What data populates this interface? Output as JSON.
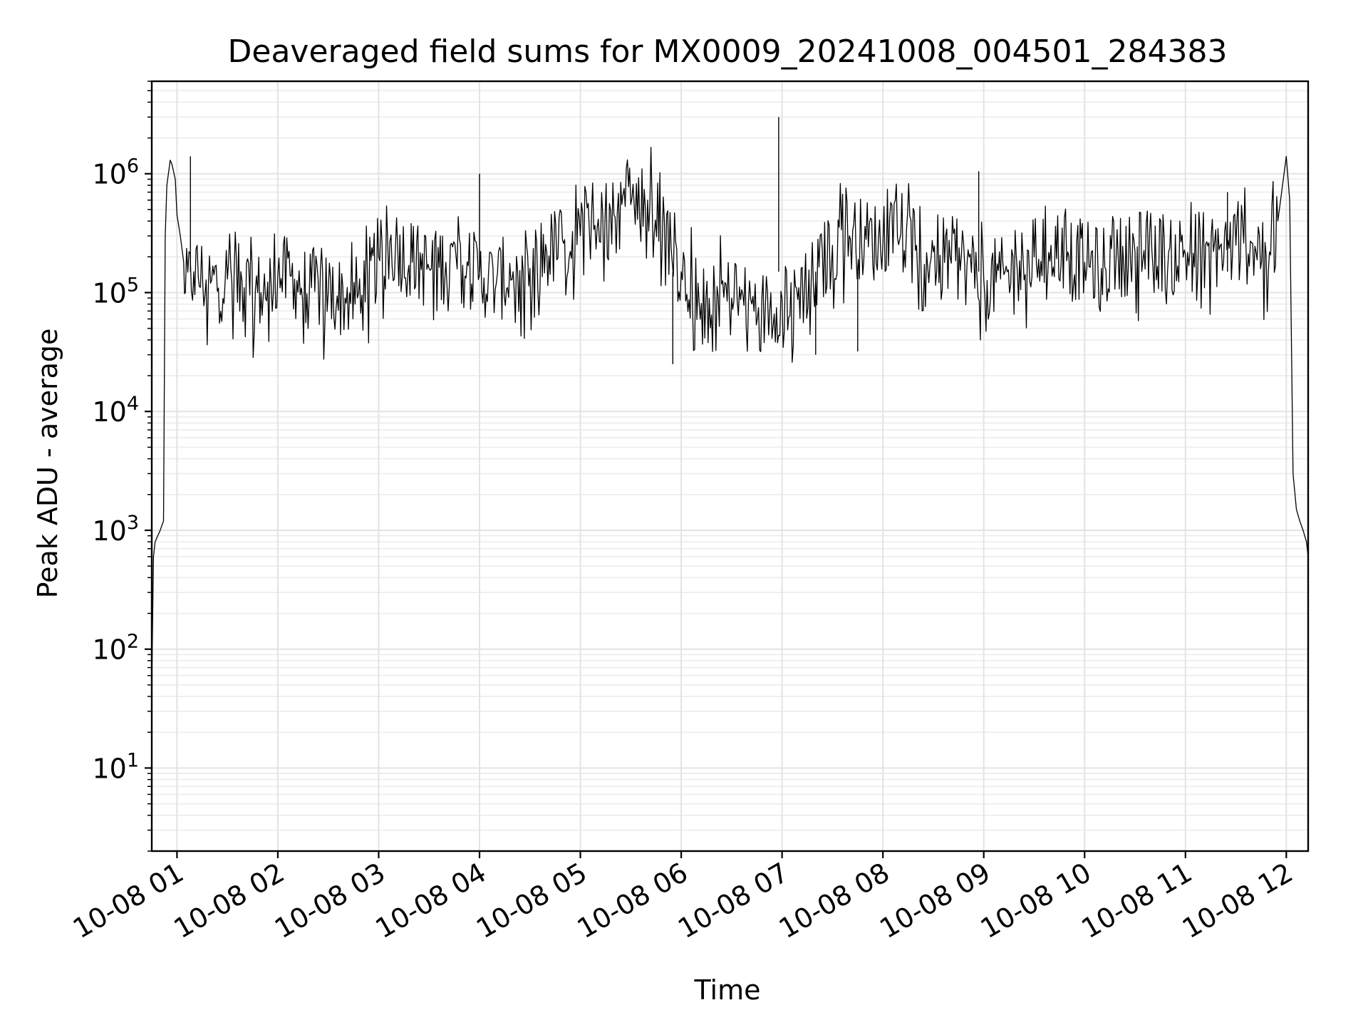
{
  "chart_data": {
    "type": "line",
    "title": "Deaveraged field sums for MX0009_20241008_004501_284383",
    "xlabel": "Time",
    "ylabel": "Peak ADU - average",
    "yscale": "log",
    "ylim": [
      2,
      6000000
    ],
    "xlim": [
      "2024-10-08 00:45",
      "2024-10-08 12:13"
    ],
    "grid": true,
    "line_color": "#000000",
    "x_ticks": [
      {
        "value": "2024-10-08 01:00",
        "label": "10-08 01"
      },
      {
        "value": "2024-10-08 02:00",
        "label": "10-08 02"
      },
      {
        "value": "2024-10-08 03:00",
        "label": "10-08 03"
      },
      {
        "value": "2024-10-08 04:00",
        "label": "10-08 04"
      },
      {
        "value": "2024-10-08 05:00",
        "label": "10-08 05"
      },
      {
        "value": "2024-10-08 06:00",
        "label": "10-08 06"
      },
      {
        "value": "2024-10-08 07:00",
        "label": "10-08 07"
      },
      {
        "value": "2024-10-08 08:00",
        "label": "10-08 08"
      },
      {
        "value": "2024-10-08 09:00",
        "label": "10-08 09"
      },
      {
        "value": "2024-10-08 10:00",
        "label": "10-08 10"
      },
      {
        "value": "2024-10-08 11:00",
        "label": "10-08 11"
      },
      {
        "value": "2024-10-08 12:00",
        "label": "10-08 12"
      }
    ],
    "y_ticks": [
      {
        "value": 10,
        "base": "10",
        "exp": "1"
      },
      {
        "value": 100,
        "base": "10",
        "exp": "2"
      },
      {
        "value": 1000,
        "base": "10",
        "exp": "3"
      },
      {
        "value": 10000,
        "base": "10",
        "exp": "4"
      },
      {
        "value": 100000,
        "base": "10",
        "exp": "5"
      },
      {
        "value": 1000000,
        "base": "10",
        "exp": "6"
      }
    ],
    "series": [
      {
        "x": [
          "2024-10-08 00:45",
          "2024-10-08 00:46",
          "2024-10-08 00:47",
          "2024-10-08 00:50",
          "2024-10-08 00:52",
          "2024-10-08 00:53",
          "2024-10-08 00:54",
          "2024-10-08 00:56",
          "2024-10-08 00:57",
          "2024-10-08 00:59",
          "2024-10-08 01:00",
          "2024-10-08 01:02",
          "2024-10-08 01:04",
          "2024-10-08 01:05",
          "2024-10-08 01:10",
          "2024-10-08 01:20",
          "2024-10-08 01:30",
          "2024-10-08 01:40",
          "2024-10-08 01:50",
          "2024-10-08 02:00",
          "2024-10-08 02:10",
          "2024-10-08 02:20",
          "2024-10-08 02:30",
          "2024-10-08 02:40",
          "2024-10-08 02:50",
          "2024-10-08 03:00",
          "2024-10-08 03:10",
          "2024-10-08 03:20",
          "2024-10-08 03:30",
          "2024-10-08 03:40",
          "2024-10-08 03:50",
          "2024-10-08 04:00",
          "2024-10-08 04:10",
          "2024-10-08 04:20",
          "2024-10-08 04:30",
          "2024-10-08 04:40",
          "2024-10-08 04:50",
          "2024-10-08 05:00",
          "2024-10-08 05:10",
          "2024-10-08 05:20",
          "2024-10-08 05:30",
          "2024-10-08 05:40",
          "2024-10-08 05:50",
          "2024-10-08 06:00",
          "2024-10-08 06:10",
          "2024-10-08 06:20",
          "2024-10-08 06:30",
          "2024-10-08 06:40",
          "2024-10-08 06:50",
          "2024-10-08 07:00",
          "2024-10-08 07:10",
          "2024-10-08 07:20",
          "2024-10-08 07:30",
          "2024-10-08 07:40",
          "2024-10-08 07:50",
          "2024-10-08 08:00",
          "2024-10-08 08:10",
          "2024-10-08 08:20",
          "2024-10-08 08:30",
          "2024-10-08 08:40",
          "2024-10-08 08:50",
          "2024-10-08 09:00",
          "2024-10-08 09:10",
          "2024-10-08 09:20",
          "2024-10-08 09:30",
          "2024-10-08 09:40",
          "2024-10-08 09:50",
          "2024-10-08 10:00",
          "2024-10-08 10:10",
          "2024-10-08 10:20",
          "2024-10-08 10:30",
          "2024-10-08 10:40",
          "2024-10-08 10:50",
          "2024-10-08 11:00",
          "2024-10-08 11:10",
          "2024-10-08 11:20",
          "2024-10-08 11:30",
          "2024-10-08 11:40",
          "2024-10-08 11:50",
          "2024-10-08 11:55",
          "2024-10-08 12:00",
          "2024-10-08 12:02",
          "2024-10-08 12:04",
          "2024-10-08 12:06",
          "2024-10-08 12:08",
          "2024-10-08 12:10",
          "2024-10-08 12:12",
          "2024-10-08 12:13"
        ],
        "y": [
          50,
          600,
          800,
          1000,
          1200,
          300000,
          800000,
          1300000,
          1200000,
          900000,
          450000,
          300000,
          180000,
          100000,
          150000,
          120000,
          130000,
          110000,
          100000,
          140000,
          130000,
          110000,
          100000,
          90000,
          95000,
          200000,
          250000,
          180000,
          160000,
          180000,
          170000,
          140000,
          120000,
          150000,
          160000,
          220000,
          260000,
          300000,
          350000,
          450000,
          550000,
          600000,
          400000,
          150000,
          120000,
          100000,
          90000,
          80000,
          70000,
          90000,
          110000,
          130000,
          250000,
          300000,
          280000,
          260000,
          280000,
          250000,
          220000,
          200000,
          170000,
          130000,
          130000,
          150000,
          200000,
          250000,
          220000,
          180000,
          160000,
          200000,
          220000,
          230000,
          220000,
          210000,
          240000,
          230000,
          250000,
          260000,
          220000,
          400000,
          1400000,
          600000,
          3000,
          1500,
          1200,
          1000,
          800,
          600
        ],
        "spikes": [
          {
            "x": "2024-10-08 01:08",
            "y": 1400000
          },
          {
            "x": "2024-10-08 04:00",
            "y": 1000000
          },
          {
            "x": "2024-10-08 06:58",
            "y": 3000000
          },
          {
            "x": "2024-10-08 08:57",
            "y": 1050000
          },
          {
            "x": "2024-10-08 11:25",
            "y": 700000
          },
          {
            "x": "2024-10-08 05:55",
            "y": 25000
          },
          {
            "x": "2024-10-08 07:20",
            "y": 30000
          },
          {
            "x": "2024-10-08 07:45",
            "y": 32000
          }
        ]
      }
    ]
  }
}
